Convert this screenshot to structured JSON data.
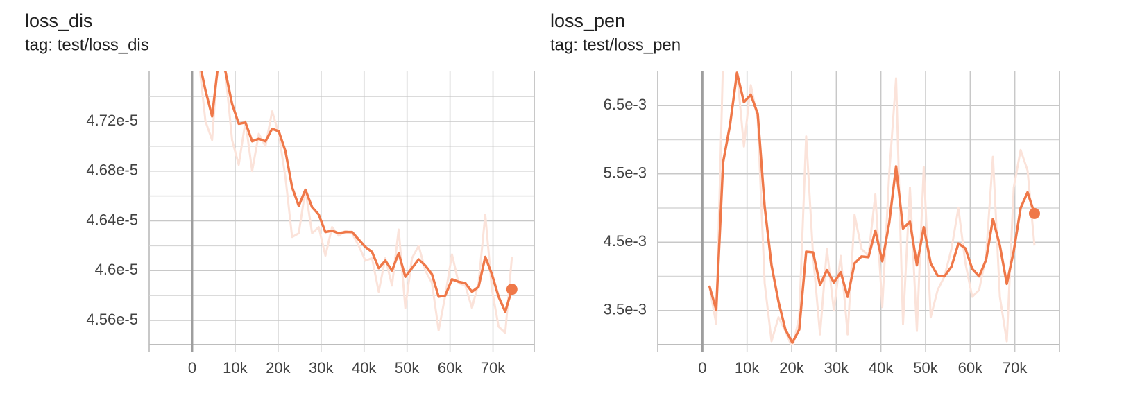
{
  "chart_data": [
    {
      "type": "line",
      "title": "loss_dis",
      "subtitle": "tag: test/loss_dis",
      "x": [
        1550,
        3100,
        4650,
        6200,
        7750,
        9300,
        10850,
        12400,
        13950,
        15500,
        17050,
        18600,
        20150,
        21700,
        23250,
        24800,
        26350,
        27900,
        29450,
        31000,
        32550,
        34100,
        35650,
        37200,
        38750,
        40300,
        41850,
        43400,
        44950,
        46500,
        48050,
        49600,
        51150,
        52700,
        54250,
        55800,
        57350,
        58900,
        60450,
        62000,
        63550,
        65100,
        66650,
        68200,
        69750,
        71300,
        72850,
        74400
      ],
      "xlim": [
        -10000,
        79600
      ],
      "xticks": [
        0,
        {
          "value": 10000,
          "label": "10k"
        },
        {
          "value": 20000,
          "label": "20k"
        },
        {
          "value": 30000,
          "label": "30k"
        },
        {
          "value": 40000,
          "label": "40k"
        },
        {
          "value": 50000,
          "label": "50k"
        },
        {
          "value": 60000,
          "label": "60k"
        },
        {
          "value": 70000,
          "label": "70k"
        }
      ],
      "ylim": [
        4.5405e-05,
        4.7601e-05
      ],
      "yticks": [
        {
          "value": 4.56e-05,
          "label": "4.56e-5"
        },
        {
          "value": 4.6e-05,
          "label": "4.6e-5"
        },
        {
          "value": 4.64e-05,
          "label": "4.64e-5"
        },
        {
          "value": 4.68e-05,
          "label": "4.68e-5"
        },
        {
          "value": 4.72e-05,
          "label": "4.72e-5"
        }
      ],
      "minor_yticks": [
        4.58e-05,
        4.62e-05,
        4.66e-05,
        4.7e-05,
        4.74e-05
      ],
      "grid": true,
      "series": [
        {
          "color": "#fbe3da",
          "values": [
            4.77e-05,
            4.72e-05,
            4.705e-05,
            4.78e-05,
            4.76e-05,
            4.705e-05,
            4.685e-05,
            4.72e-05,
            4.68e-05,
            4.71e-05,
            4.7e-05,
            4.728e-05,
            4.71e-05,
            4.675e-05,
            4.627e-05,
            4.63e-05,
            4.665e-05,
            4.63e-05,
            4.635e-05,
            4.612e-05,
            4.635e-05,
            4.628e-05,
            4.632e-05,
            4.63e-05,
            4.62e-05,
            4.608e-05,
            4.61e-05,
            4.583e-05,
            4.61e-05,
            4.588e-05,
            4.633e-05,
            4.57e-05,
            4.61e-05,
            4.62e-05,
            4.6e-05,
            4.59e-05,
            4.552e-05,
            4.58e-05,
            4.613e-05,
            4.59e-05,
            4.588e-05,
            4.57e-05,
            4.59e-05,
            4.645e-05,
            4.585e-05,
            4.555e-05,
            4.55e-05,
            4.611e-05
          ]
        },
        {
          "color": "#ef7849",
          "values": [
            4.77e-05,
            4.745e-05,
            4.724e-05,
            4.77e-05,
            4.76e-05,
            4.734e-05,
            4.718e-05,
            4.719e-05,
            4.704e-05,
            4.706e-05,
            4.704e-05,
            4.714e-05,
            4.712e-05,
            4.696e-05,
            4.667e-05,
            4.652e-05,
            4.665e-05,
            4.651e-05,
            4.645e-05,
            4.631e-05,
            4.632e-05,
            4.63e-05,
            4.631e-05,
            4.631e-05,
            4.625e-05,
            4.619e-05,
            4.615e-05,
            4.602e-05,
            4.608e-05,
            4.6e-05,
            4.614e-05,
            4.595e-05,
            4.602e-05,
            4.609e-05,
            4.604e-05,
            4.597e-05,
            4.579e-05,
            4.58e-05,
            4.593e-05,
            4.591e-05,
            4.59e-05,
            4.583e-05,
            4.587e-05,
            4.611e-05,
            4.597e-05,
            4.579e-05,
            4.567e-05,
            4.585e-05
          ]
        }
      ]
    },
    {
      "type": "line",
      "title": "loss_pen",
      "subtitle": "tag: test/loss_pen",
      "x": [
        1550,
        3100,
        4650,
        6200,
        7750,
        9300,
        10850,
        12400,
        13950,
        15500,
        17050,
        18600,
        20150,
        21700,
        23250,
        24800,
        26350,
        27900,
        29450,
        31000,
        32550,
        34100,
        35650,
        37200,
        38750,
        40300,
        41850,
        43400,
        44950,
        46500,
        48050,
        49600,
        51150,
        52700,
        54250,
        55800,
        57350,
        58900,
        60450,
        62000,
        63550,
        65100,
        66650,
        68200,
        69750,
        71300,
        72850,
        74400
      ],
      "xlim": [
        -10000,
        80000
      ],
      "xticks": [
        0,
        {
          "value": 10000,
          "label": "10k"
        },
        {
          "value": 20000,
          "label": "20k"
        },
        {
          "value": 30000,
          "label": "30k"
        },
        {
          "value": 40000,
          "label": "40k"
        },
        {
          "value": 50000,
          "label": "50k"
        },
        {
          "value": 60000,
          "label": "60k"
        },
        {
          "value": 70000,
          "label": "70k"
        }
      ],
      "ylim": [
        0.003,
        0.007
      ],
      "yticks": [
        {
          "value": 0.0035,
          "label": "3.5e-3"
        },
        {
          "value": 0.0045,
          "label": "4.5e-3"
        },
        {
          "value": 0.0055,
          "label": "5.5e-3"
        },
        {
          "value": 0.0065,
          "label": "6.5e-3"
        }
      ],
      "minor_yticks": [
        0.004,
        0.005,
        0.006
      ],
      "grid": true,
      "series": [
        {
          "color": "#fbe3da",
          "values": [
            0.00386,
            0.0033,
            0.0072,
            0.0075,
            0.007,
            0.0059,
            0.0068,
            0.0063,
            0.0039,
            0.00305,
            0.0034,
            0.0032,
            0.00295,
            0.0034,
            0.00605,
            0.0043,
            0.00315,
            0.0044,
            0.0035,
            0.0043,
            0.00315,
            0.0049,
            0.0044,
            0.0043,
            0.0052,
            0.00355,
            0.0055,
            0.0069,
            0.0033,
            0.0053,
            0.0032,
            0.0056,
            0.0034,
            0.0038,
            0.004,
            0.0044,
            0.005,
            0.0042,
            0.0037,
            0.0038,
            0.0043,
            0.00575,
            0.0037,
            0.00305,
            0.0053,
            0.00585,
            0.00555,
            0.00445
          ]
        },
        {
          "color": "#ef7849",
          "values": [
            0.003865,
            0.00351,
            0.00567,
            0.00622,
            0.00698,
            0.00655,
            0.00666,
            0.00638,
            0.00502,
            0.00416,
            0.00363,
            0.00322,
            0.00303,
            0.00322,
            0.00436,
            0.00435,
            0.00387,
            0.00409,
            0.00391,
            0.00406,
            0.0037,
            0.00419,
            0.00429,
            0.00428,
            0.00467,
            0.00422,
            0.00478,
            0.00561,
            0.0047,
            0.0048,
            0.00416,
            0.00472,
            0.00419,
            0.00401,
            0.004,
            0.00414,
            0.00448,
            0.00441,
            0.00411,
            0.004,
            0.00424,
            0.00484,
            0.00445,
            0.00389,
            0.00437,
            0.005,
            0.00523,
            0.00492
          ]
        }
      ]
    }
  ]
}
